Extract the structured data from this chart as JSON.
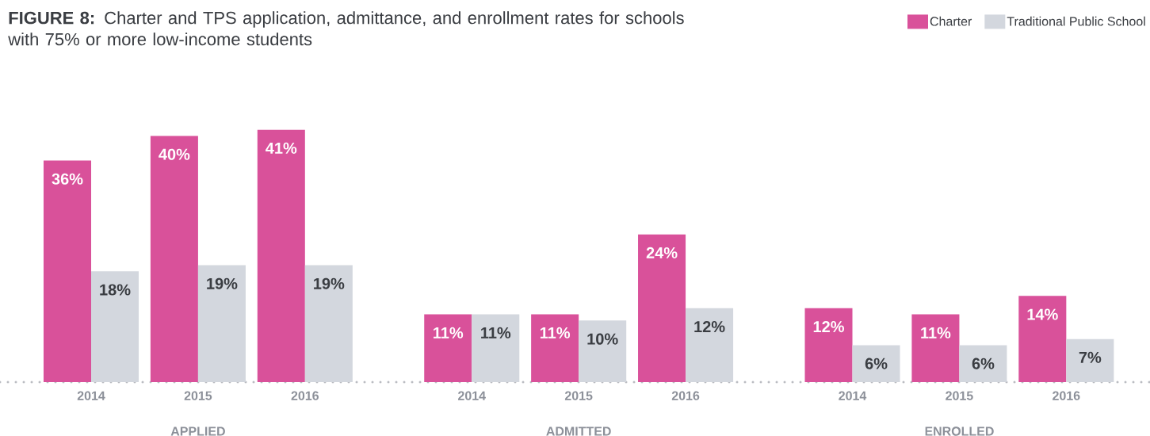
{
  "chart_data": {
    "type": "bar",
    "title": "**FIGURE 8:** Charter and TPS application, admittance, and enrollment rates for schools with 75% or more low-income students",
    "categories": [
      "2014",
      "2015",
      "2016",
      "2014",
      "2015",
      "2016",
      "2014",
      "2015",
      "2016"
    ],
    "series": [
      {
        "name": "Charter",
        "color": "#d9519a",
        "values": [
          36,
          40,
          41,
          11,
          11,
          24,
          12,
          11,
          14
        ],
        "value_labels": [
          "36%",
          "40%",
          "41%",
          "11%",
          "11%",
          "24%",
          "12%",
          "11%",
          "14%"
        ]
      },
      {
        "name": "Traditional Public School",
        "color": "#d3d7de",
        "values": [
          18,
          19,
          19,
          11,
          10,
          12,
          6,
          6,
          7
        ],
        "value_labels": [
          "18%",
          "19%",
          "19%",
          "11%",
          "10%",
          "12%",
          "6%",
          "6%",
          "7%"
        ]
      }
    ],
    "annotations": [
      "APPLIED",
      "ADMITTED",
      "ENROLLED"
    ],
    "legend": "top right",
    "grid": false
  }
}
